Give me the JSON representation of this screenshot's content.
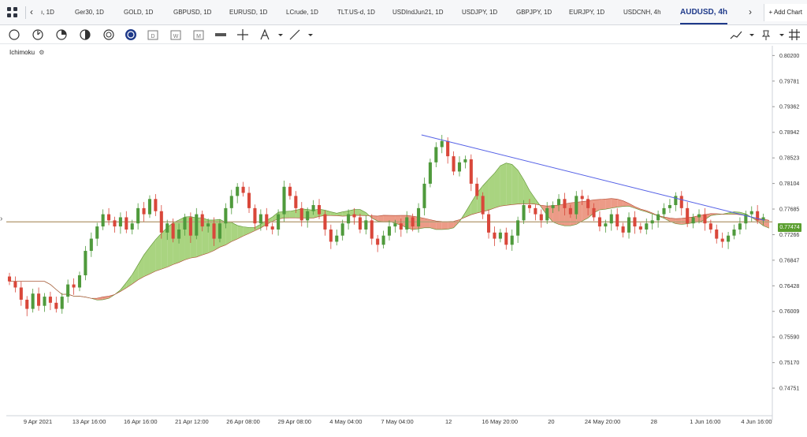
{
  "tabs": [
    {
      "label": "ı, 1D"
    },
    {
      "label": "Ger30, 1D"
    },
    {
      "label": "GOLD, 1D"
    },
    {
      "label": "GBPUSD, 1D"
    },
    {
      "label": "EURUSD, 1D"
    },
    {
      "label": "LCrude, 1D"
    },
    {
      "label": "TLT.US-d, 1D"
    },
    {
      "label": "USDIndJun21, 1D"
    },
    {
      "label": "USDJPY, 1D"
    },
    {
      "label": "GBPJPY, 1D"
    },
    {
      "label": "EURJPY, 1D"
    },
    {
      "label": "USDCNH, 4h"
    },
    {
      "label": "AUDUSD, 4h",
      "active": true
    }
  ],
  "add_chart_label": "+ Add Chart",
  "indicator_label": "Ichimoku",
  "current_price": "0.77474",
  "colors": {
    "up": "#4f9a3c",
    "down": "#d9473a",
    "cloud_bull": "#9acd6a",
    "cloud_bear": "#e98a72",
    "trendline": "#5561e6",
    "hline": "#b8a07a",
    "price_badge": "#5a9e2f"
  },
  "icons": [
    "circle-tool-icon",
    "clock-tool-icon",
    "pie-tool-icon",
    "half-circle-icon",
    "multi-circle-icon",
    "active-circle-icon",
    "calendar-d-icon",
    "calendar-w-icon",
    "calendar-m-icon",
    "bar-type-icon",
    "crosshair-icon",
    "text-tool-icon",
    "line-tool-icon",
    "trend-style-icon",
    "pin-icon",
    "grid-toggle-icon"
  ],
  "chart_data": {
    "type": "candlestick",
    "symbol": "AUDUSD",
    "timeframe": "4h",
    "ylim": [
      0.743,
      0.8036
    ],
    "yticks": [
      "0.80200",
      "0.79781",
      "0.79362",
      "0.78942",
      "0.78523",
      "0.78104",
      "0.77685",
      "0.77266",
      "0.76847",
      "0.76428",
      "0.76009",
      "0.75590",
      "0.75170",
      "0.74751"
    ],
    "xticks": [
      "9 Apr 2021",
      "13 Apr 16:00",
      "16 Apr 16:00",
      "21 Apr 12:00",
      "26 Apr 08:00",
      "29 Apr 08:00",
      "4 May 04:00",
      "7 May 04:00",
      "12",
      "16 May 20:00",
      "20",
      "24 May 20:00",
      "28",
      "1 Jun 16:00",
      "4 Jun 16:00"
    ],
    "horizontal_line": 0.77474,
    "trendline": {
      "from": [
        0.789,
        0.0
      ],
      "to": [
        0.775,
        1.0
      ]
    },
    "close_series": [
      0.765,
      0.764,
      0.762,
      0.7605,
      0.763,
      0.761,
      0.7625,
      0.7615,
      0.7605,
      0.7625,
      0.7645,
      0.764,
      0.766,
      0.77,
      0.772,
      0.774,
      0.776,
      0.775,
      0.774,
      0.7755,
      0.7735,
      0.7745,
      0.777,
      0.776,
      0.7785,
      0.7765,
      0.773,
      0.7745,
      0.772,
      0.7735,
      0.7755,
      0.7725,
      0.776,
      0.774,
      0.7745,
      0.772,
      0.7745,
      0.777,
      0.779,
      0.7805,
      0.7795,
      0.777,
      0.7745,
      0.776,
      0.774,
      0.7735,
      0.776,
      0.7805,
      0.779,
      0.777,
      0.775,
      0.7765,
      0.7775,
      0.776,
      0.7735,
      0.7715,
      0.7725,
      0.7745,
      0.776,
      0.7755,
      0.7735,
      0.775,
      0.772,
      0.771,
      0.7725,
      0.774,
      0.7745,
      0.7735,
      0.7755,
      0.774,
      0.777,
      0.781,
      0.7845,
      0.787,
      0.788,
      0.7855,
      0.783,
      0.7845,
      0.785,
      0.781,
      0.779,
      0.776,
      0.773,
      0.772,
      0.773,
      0.771,
      0.7725,
      0.775,
      0.7775,
      0.777,
      0.776,
      0.775,
      0.777,
      0.7775,
      0.7785,
      0.777,
      0.776,
      0.779,
      0.7785,
      0.777,
      0.7755,
      0.774,
      0.7745,
      0.776,
      0.774,
      0.773,
      0.7755,
      0.774,
      0.7735,
      0.7745,
      0.775,
      0.776,
      0.777,
      0.7775,
      0.779,
      0.777,
      0.7745,
      0.7755,
      0.776,
      0.7745,
      0.7735,
      0.772,
      0.7715,
      0.7725,
      0.7735,
      0.7745,
      0.776,
      0.7765,
      0.775,
      0.7755
    ]
  }
}
